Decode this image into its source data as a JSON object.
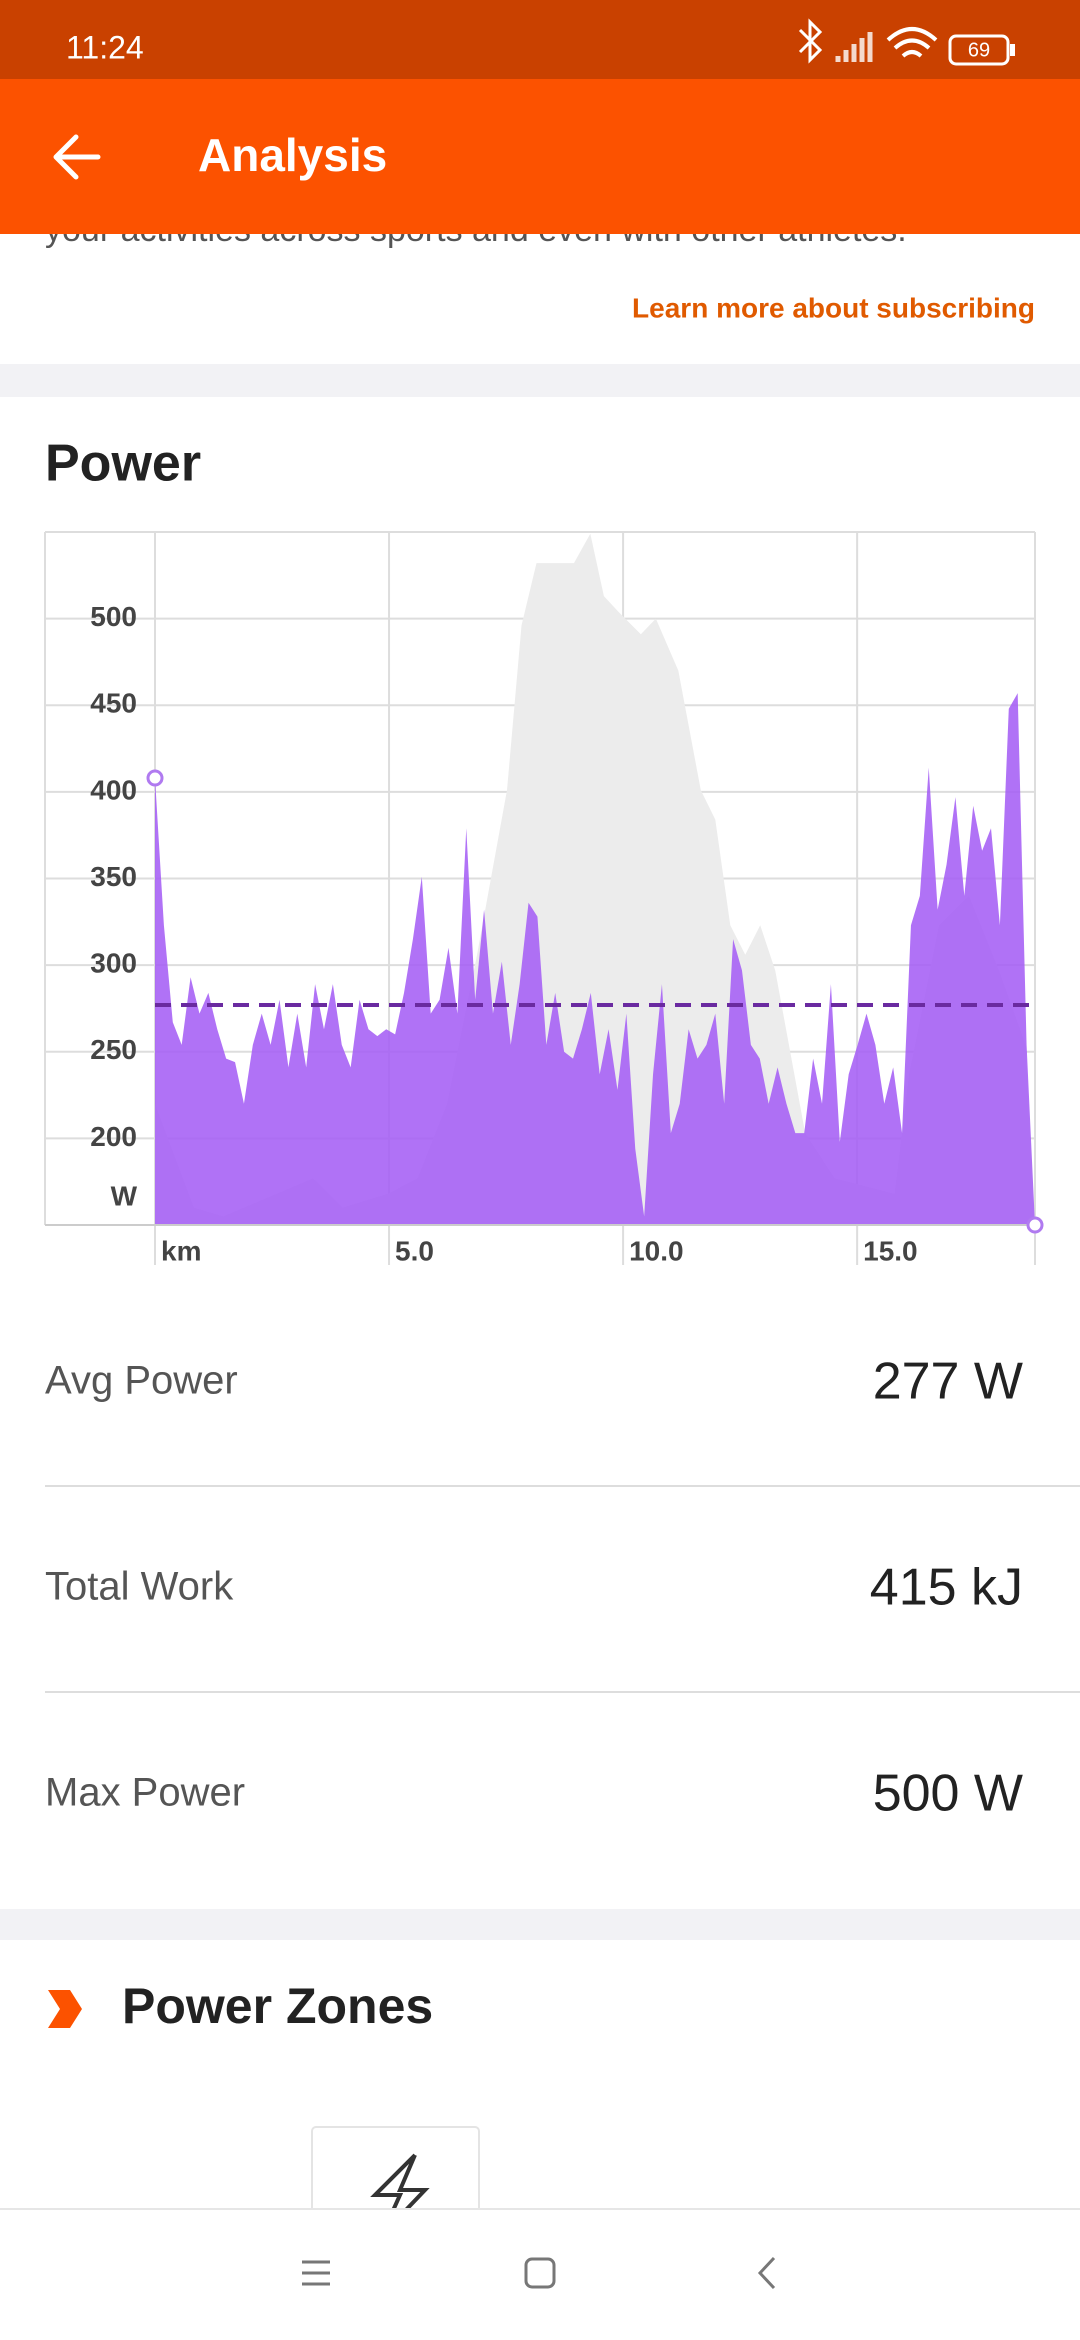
{
  "status_bar": {
    "time": "11:24",
    "battery": "69"
  },
  "app_bar": {
    "title": "Analysis"
  },
  "promo": {
    "text": "your activities across sports and even with other athletes.",
    "link": "Learn more about subscribing"
  },
  "power_section": {
    "title": "Power"
  },
  "chart_data": {
    "type": "area",
    "ylim": [
      150,
      550
    ],
    "yticks": [
      200,
      250,
      300,
      350,
      400,
      450,
      500
    ],
    "y_unit": "W",
    "xlim": [
      0,
      18.8
    ],
    "xticks": [
      {
        "value": 0,
        "label": "km"
      },
      {
        "value": 5,
        "label": "5.0"
      },
      {
        "value": 10,
        "label": "10.0"
      },
      {
        "value": 15,
        "label": "15.0"
      }
    ],
    "grid": true,
    "average": 277,
    "average_color": "#6a2aa0",
    "background": {
      "color": "#ececec",
      "x": [
        0,
        0.83,
        1.46,
        3.38,
        4.01,
        4.97,
        5.61,
        6.24,
        6.88,
        7.52,
        7.83,
        8.15,
        8.95,
        9.3,
        9.59,
        9.9,
        10.38,
        10.7,
        11.18,
        11.66,
        11.97,
        12.29,
        12.61,
        12.93,
        13.25,
        13.89,
        14.52,
        15.8,
        16.11,
        16.75,
        17.39,
        18.03,
        18.6,
        18.8
      ],
      "values": [
        220,
        160,
        155,
        177,
        160,
        168,
        177,
        220,
        306,
        401,
        496,
        532,
        532,
        549,
        513,
        504,
        491,
        500,
        470,
        401,
        384,
        323,
        306,
        323,
        297,
        203,
        177,
        168,
        237,
        323,
        340,
        297,
        254,
        150
      ]
    },
    "series": [
      {
        "color": "#a55ef5",
        "x": [
          0,
          0.19,
          0.38,
          0.57,
          0.76,
          0.95,
          1.14,
          1.33,
          1.52,
          1.71,
          1.9,
          2.09,
          2.28,
          2.47,
          2.66,
          2.85,
          3.04,
          3.23,
          3.42,
          3.61,
          3.8,
          3.99,
          4.18,
          4.37,
          4.56,
          4.75,
          4.94,
          5.13,
          5.32,
          5.51,
          5.7,
          5.89,
          6.08,
          6.27,
          6.46,
          6.65,
          6.84,
          7.03,
          7.22,
          7.41,
          7.6,
          7.79,
          7.98,
          8.17,
          8.36,
          8.55,
          8.74,
          8.93,
          9.12,
          9.31,
          9.5,
          9.69,
          9.88,
          10.07,
          10.26,
          10.45,
          10.64,
          10.83,
          11.02,
          11.21,
          11.4,
          11.59,
          11.78,
          11.97,
          12.16,
          12.35,
          12.54,
          12.73,
          12.92,
          13.11,
          13.3,
          13.49,
          13.68,
          13.87,
          14.06,
          14.25,
          14.44,
          14.63,
          14.82,
          15.01,
          15.2,
          15.39,
          15.58,
          15.77,
          15.96,
          16.15,
          16.34,
          16.53,
          16.72,
          16.91,
          17.1,
          17.29,
          17.48,
          17.67,
          17.86,
          18.05,
          18.24,
          18.43,
          18.62,
          18.8
        ],
        "values": [
          408,
          323,
          267,
          254,
          293,
          272,
          284,
          263,
          246,
          244,
          220,
          254,
          272,
          254,
          280,
          241,
          272,
          241,
          289,
          263,
          289,
          254,
          241,
          280,
          263,
          259,
          263,
          260,
          284,
          315,
          351,
          272,
          280,
          310,
          272,
          379,
          280,
          332,
          272,
          302,
          254,
          289,
          336,
          328,
          254,
          284,
          250,
          246,
          263,
          284,
          237,
          263,
          228,
          272,
          194,
          155,
          237,
          289,
          203,
          220,
          263,
          246,
          254,
          272,
          220,
          315,
          297,
          254,
          246,
          220,
          241,
          220,
          203,
          203,
          246,
          220,
          289,
          198,
          237,
          254,
          272,
          254,
          220,
          241,
          203,
          323,
          340,
          414,
          332,
          358,
          397,
          340,
          392,
          366,
          379,
          323,
          448,
          457,
          254,
          150
        ]
      }
    ]
  },
  "stats": [
    {
      "label": "Avg Power",
      "value": "277 W"
    },
    {
      "label": "Total Work",
      "value": "415 kJ"
    },
    {
      "label": "Max Power",
      "value": "500 W"
    }
  ],
  "zones_section": {
    "title": "Power Zones"
  }
}
